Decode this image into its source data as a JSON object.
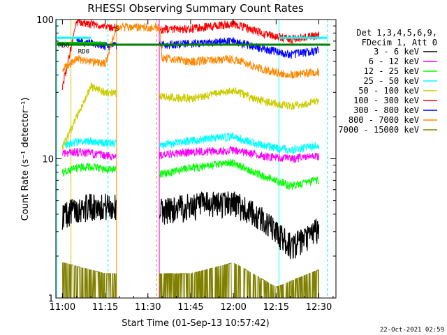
{
  "chart_data": {
    "type": "line",
    "title": "RHESSI Observing Summary Count Rates",
    "xlabel": "Start Time (01-Sep-13 10:57:42)",
    "ylabel": "Count Rate (s⁻¹ detector⁻¹)",
    "y_scale": "log",
    "ylim": [
      1,
      100
    ],
    "xlim": [
      "10:57:42",
      "12:36:00"
    ],
    "x_ticks": [
      "11:00",
      "11:15",
      "11:30",
      "11:45",
      "12:00",
      "12:15",
      "12:30"
    ],
    "y_ticks": [
      "1",
      "10",
      "100"
    ],
    "legend_header": [
      "Det 1,3,4,5,6,9,",
      "FDecim 1, Att 0"
    ],
    "legend_position": "right",
    "footer": "22-Oct-2021 02:59",
    "data_gaps": [
      [
        "11:19",
        "11:34"
      ]
    ],
    "annotations": [
      {
        "text": "RD0",
        "time": "10:58",
        "y": 66
      },
      {
        "text": "RD0",
        "time": "11:05",
        "y": 60
      },
      {
        "text": "S",
        "time": "11:18",
        "y": 87
      }
    ],
    "series": [
      {
        "name": "3 - 6 keV",
        "color": "#000000",
        "values": [
          [
            "11:00",
            4.0
          ],
          [
            "11:05",
            4.4
          ],
          [
            "11:10",
            4.6
          ],
          [
            "11:15",
            4.6
          ],
          [
            "11:35",
            4.3
          ],
          [
            "11:45",
            4.6
          ],
          [
            "12:00",
            4.9
          ],
          [
            "12:10",
            3.7
          ],
          [
            "12:15",
            3.0
          ],
          [
            "12:20",
            2.4
          ],
          [
            "12:25",
            2.6
          ],
          [
            "12:30",
            3.2
          ]
        ]
      },
      {
        "name": "6 - 12 keV",
        "color": "#ff00ff",
        "values": [
          [
            "11:00",
            11
          ],
          [
            "11:05",
            11.2
          ],
          [
            "11:10",
            11
          ],
          [
            "11:15",
            10.5
          ],
          [
            "11:35",
            10.6
          ],
          [
            "11:45",
            11.2
          ],
          [
            "12:00",
            11.5
          ],
          [
            "12:10",
            10.5
          ],
          [
            "12:20",
            10
          ],
          [
            "12:30",
            10.5
          ]
        ]
      },
      {
        "name": "12 - 25 keV",
        "color": "#00ff00",
        "values": [
          [
            "11:00",
            8
          ],
          [
            "11:05",
            8.6
          ],
          [
            "11:10",
            8.8
          ],
          [
            "11:15",
            8.4
          ],
          [
            "11:35",
            7.8
          ],
          [
            "11:45",
            8.6
          ],
          [
            "12:00",
            9.4
          ],
          [
            "12:10",
            7.6
          ],
          [
            "12:20",
            6.4
          ],
          [
            "12:30",
            7.0
          ]
        ]
      },
      {
        "name": "25 - 50 keV",
        "color": "#00ffff",
        "values": [
          [
            "11:00",
            12.5
          ],
          [
            "11:05",
            13.2
          ],
          [
            "11:10",
            13.5
          ],
          [
            "11:15",
            13
          ],
          [
            "11:35",
            12.5
          ],
          [
            "11:45",
            13.5
          ],
          [
            "12:00",
            14.5
          ],
          [
            "12:10",
            12.5
          ],
          [
            "12:20",
            11.5
          ],
          [
            "12:30",
            12.5
          ]
        ]
      },
      {
        "name": "50 - 100 keV",
        "color": "#cccc00",
        "values": [
          [
            "11:00",
            12
          ],
          [
            "11:10",
            33
          ],
          [
            "11:15",
            30
          ],
          [
            "11:35",
            28
          ],
          [
            "11:45",
            27
          ],
          [
            "12:00",
            31
          ],
          [
            "12:10",
            26
          ],
          [
            "12:20",
            24
          ],
          [
            "12:30",
            26
          ]
        ]
      },
      {
        "name": "100 - 300 keV",
        "color": "#ff0000",
        "values": [
          [
            "11:00",
            33
          ],
          [
            "11:05",
            96
          ],
          [
            "11:10",
            93
          ],
          [
            "11:15",
            88
          ],
          [
            "11:35",
            85
          ],
          [
            "11:45",
            86
          ],
          [
            "12:00",
            93
          ],
          [
            "12:10",
            80
          ],
          [
            "12:20",
            72
          ],
          [
            "12:30",
            77
          ]
        ]
      },
      {
        "name": "300 - 800 keV",
        "color": "#0000ff",
        "values": [
          [
            "11:05",
            70
          ],
          [
            "11:10",
            68
          ],
          [
            "11:15",
            64
          ],
          [
            "11:35",
            66
          ],
          [
            "11:45",
            67
          ],
          [
            "12:00",
            70
          ],
          [
            "12:10",
            62
          ],
          [
            "12:20",
            56
          ],
          [
            "12:30",
            60
          ]
        ]
      },
      {
        "name": "800 - 7000 keV",
        "color": "#ff8800",
        "values": [
          [
            "11:00",
            44
          ],
          [
            "11:05",
            52
          ],
          [
            "11:10",
            50
          ],
          [
            "11:15",
            48
          ],
          [
            "11:19",
            88
          ],
          [
            "11:34",
            88
          ],
          [
            "11:35",
            53
          ],
          [
            "11:45",
            50
          ],
          [
            "12:00",
            52
          ],
          [
            "12:10",
            44
          ],
          [
            "12:20",
            40
          ],
          [
            "12:30",
            42
          ]
        ]
      },
      {
        "name": "7000 - 15000 keV",
        "color": "#808000",
        "values": [
          [
            "11:00",
            1.8
          ],
          [
            "11:15",
            1.5
          ],
          [
            "11:45",
            1.5
          ],
          [
            "12:00",
            1.8
          ],
          [
            "12:15",
            1.2
          ],
          [
            "12:30",
            1.6
          ]
        ]
      }
    ],
    "vertical_markers": [
      {
        "time": "10:58",
        "color": "#00ffff",
        "style": "solid"
      },
      {
        "time": "11:03",
        "color": "#cccc00",
        "style": "solid"
      },
      {
        "time": "11:16",
        "color": "#00ffff",
        "style": "dashed"
      },
      {
        "time": "11:19",
        "color": "#ff8800",
        "style": "solid"
      },
      {
        "time": "11:33",
        "color": "#ff8800",
        "style": "dashed"
      },
      {
        "time": "11:34",
        "color": "#ff00ff",
        "style": "solid"
      },
      {
        "time": "12:16",
        "color": "#00ffff",
        "style": "solid"
      },
      {
        "time": "12:33",
        "color": "#00ffff",
        "style": "dashed"
      }
    ],
    "horizontal_bars": [
      {
        "from": "10:58",
        "to": "11:10",
        "y": 74,
        "color": "#00ffff"
      },
      {
        "from": "10:58",
        "to": "11:15",
        "y": 68,
        "color": "#00c000"
      },
      {
        "from": "12:16",
        "to": "12:33",
        "y": 74,
        "color": "#00ffff"
      },
      {
        "from": "10:58",
        "to": "12:34",
        "y": 66,
        "color": "#008000"
      }
    ]
  }
}
